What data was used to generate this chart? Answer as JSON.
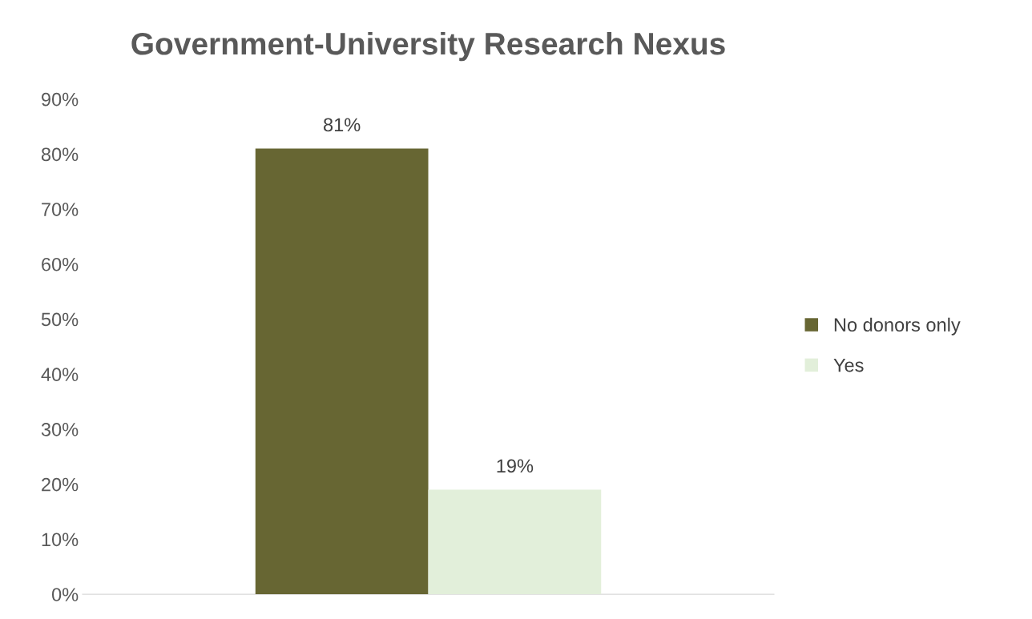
{
  "chart_data": {
    "type": "bar",
    "title": "Government-University Research Nexus",
    "categories": [
      null
    ],
    "series": [
      {
        "name": "No donors only",
        "color": "#676633",
        "values": [
          81
        ],
        "value_labels": [
          "81%"
        ]
      },
      {
        "name": "Yes",
        "color": "#e2efda",
        "values": [
          19
        ],
        "value_labels": [
          "19%"
        ]
      }
    ],
    "ylim": [
      0,
      90
    ],
    "yticks": [
      {
        "value": 0,
        "label": "0%"
      },
      {
        "value": 10,
        "label": "10%"
      },
      {
        "value": 20,
        "label": "20%"
      },
      {
        "value": 30,
        "label": "30%"
      },
      {
        "value": 40,
        "label": "40%"
      },
      {
        "value": 50,
        "label": "50%"
      },
      {
        "value": 60,
        "label": "60%"
      },
      {
        "value": 70,
        "label": "70%"
      },
      {
        "value": 80,
        "label": "80%"
      },
      {
        "value": 90,
        "label": "90%"
      }
    ],
    "tick_labels": "y",
    "grid": false,
    "legend": "right"
  }
}
